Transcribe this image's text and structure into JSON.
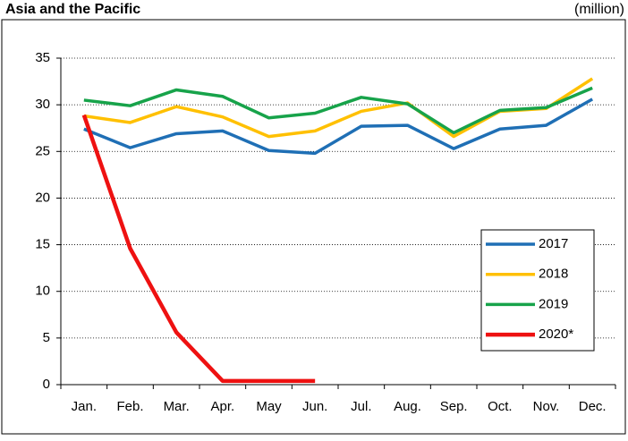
{
  "chart_data": {
    "type": "line",
    "title": "Asia and the Pacific",
    "unit_label": "(million)",
    "categories": [
      "Jan.",
      "Feb.",
      "Mar.",
      "Apr.",
      "May",
      "Jun.",
      "Jul.",
      "Aug.",
      "Sep.",
      "Oct.",
      "Nov.",
      "Dec."
    ],
    "series": [
      {
        "name": "2017",
        "color": "#1f6fb5",
        "values": [
          27.4,
          25.4,
          26.9,
          27.2,
          25.1,
          24.8,
          27.7,
          27.8,
          25.3,
          27.4,
          27.8,
          30.6
        ]
      },
      {
        "name": "2018",
        "color": "#ffc000",
        "values": [
          28.8,
          28.1,
          29.8,
          28.7,
          26.6,
          27.2,
          29.3,
          30.2,
          26.6,
          29.3,
          29.6,
          32.8
        ]
      },
      {
        "name": "2019",
        "color": "#17a34a",
        "values": [
          30.5,
          29.9,
          31.6,
          30.9,
          28.6,
          29.1,
          30.8,
          30.1,
          27.0,
          29.4,
          29.7,
          31.8
        ]
      },
      {
        "name": "2020*",
        "color": "#ee1111",
        "values": [
          28.9,
          14.6,
          5.6,
          0.4,
          0.4,
          0.4,
          null,
          null,
          null,
          null,
          null,
          null
        ]
      }
    ],
    "ylim": [
      0,
      35
    ],
    "yticks": [
      0,
      5,
      10,
      15,
      20,
      25,
      30,
      35
    ],
    "grid": true,
    "legend": "lower-right"
  }
}
